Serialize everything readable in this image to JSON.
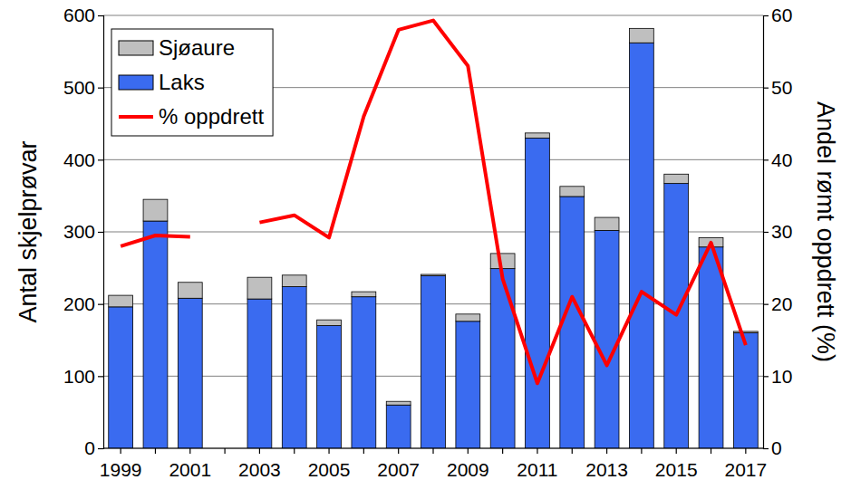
{
  "chart_data": {
    "type": "bar",
    "stacked": true,
    "grid": true,
    "legend": "top-left",
    "ylabel": "Antal skjelprøvar",
    "y2label": "Andel rømt oppdrett (%)",
    "categories": [
      "1999",
      null,
      "2001",
      null,
      "2003",
      null,
      "2005",
      null,
      "2007",
      null,
      "2009",
      null,
      "2011",
      null,
      "2013",
      null,
      "2015",
      null,
      "2017"
    ],
    "ylim": [
      0,
      600
    ],
    "yticks": [
      0,
      100,
      200,
      300,
      400,
      500,
      600
    ],
    "y2lim": [
      0,
      60
    ],
    "y2ticks": [
      0,
      10,
      20,
      30,
      40,
      50,
      60
    ],
    "series": [
      {
        "name": "Sjøaure",
        "color": "#bfbfbf",
        "values": [
          16,
          30,
          22,
          null,
          30,
          16,
          8,
          7,
          5,
          2,
          10,
          21,
          7,
          14,
          18,
          20,
          13,
          13,
          2
        ]
      },
      {
        "name": "Laks",
        "color": "#3a6bf0",
        "values": [
          196,
          315,
          208,
          null,
          207,
          224,
          170,
          210,
          60,
          239,
          176,
          249,
          430,
          349,
          302,
          562,
          367,
          279,
          160
        ]
      },
      {
        "name": "% oppdrett",
        "type": "line",
        "axis": "y2",
        "color": "#ff0000",
        "values": [
          28,
          29.5,
          29.3,
          null,
          31.3,
          32.3,
          29.2,
          46,
          58,
          59.3,
          53,
          23.5,
          9,
          21,
          11.5,
          21.7,
          18.5,
          28.5,
          14.3
        ]
      }
    ]
  }
}
